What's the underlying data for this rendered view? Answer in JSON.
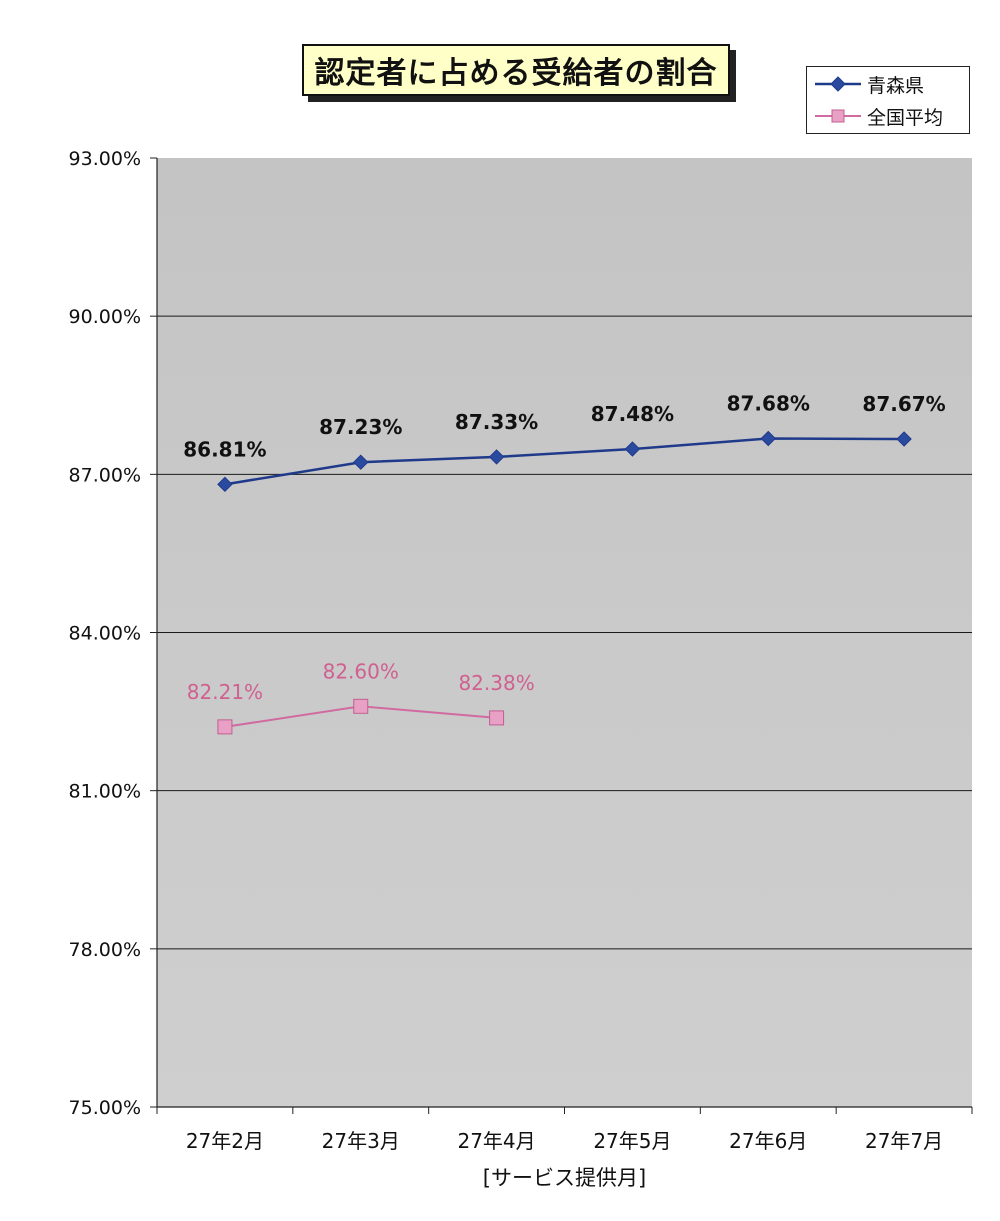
{
  "chart_data": {
    "type": "line",
    "title": "認定者に占める受給者の割合",
    "xlabel": "[サービス提供月]",
    "ylabel": "",
    "categories": [
      "27年2月",
      "27年3月",
      "27年4月",
      "27年5月",
      "27年6月",
      "27年7月"
    ],
    "ylim": [
      75.0,
      93.0
    ],
    "yticks": [
      {
        "value": 93.0,
        "label": "93.00%"
      },
      {
        "value": 90.0,
        "label": "90.00%"
      },
      {
        "value": 87.0,
        "label": "87.00%"
      },
      {
        "value": 84.0,
        "label": "84.00%"
      },
      {
        "value": 81.0,
        "label": "81.00%"
      },
      {
        "value": 78.0,
        "label": "78.00%"
      },
      {
        "value": 75.0,
        "label": "75.00%"
      }
    ],
    "grid": true,
    "legend_position": "top-right",
    "series": [
      {
        "name": "青森県",
        "color": "#1f3a8a",
        "marker": "diamond",
        "values": [
          86.81,
          87.23,
          87.33,
          87.48,
          87.68,
          87.67
        ],
        "labels": [
          "86.81%",
          "87.23%",
          "87.33%",
          "87.48%",
          "87.68%",
          "87.67%"
        ]
      },
      {
        "name": "全国平均",
        "color": "#d06aa0",
        "marker": "square",
        "values": [
          82.21,
          82.6,
          82.38,
          null,
          null,
          null
        ],
        "labels": [
          "82.21%",
          "82.60%",
          "82.38%",
          "",
          "",
          ""
        ]
      }
    ],
    "colors": {
      "plot_background": "#c8c8c8",
      "gridline": "#1a1a1a",
      "label_series1": "#111111",
      "label_series2": "#d0608f"
    }
  }
}
